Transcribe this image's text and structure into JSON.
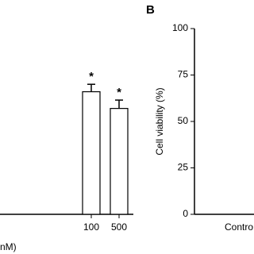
{
  "chart_data": [
    {
      "type": "bar",
      "xlabel": "nM)",
      "categories": [
        "100",
        "500"
      ],
      "values": [
        66,
        57
      ],
      "errors": [
        4,
        4.5
      ],
      "annotations": [
        "*",
        "*"
      ],
      "color": "#ffffff",
      "ylim": [
        0,
        100
      ]
    },
    {
      "type": "bar",
      "panel_label": "B",
      "ylabel": "Cell viability (%)",
      "categories": [
        "Contro"
      ],
      "ylim": [
        0,
        100
      ],
      "yticks": [
        0,
        25,
        50,
        75,
        100
      ]
    }
  ]
}
